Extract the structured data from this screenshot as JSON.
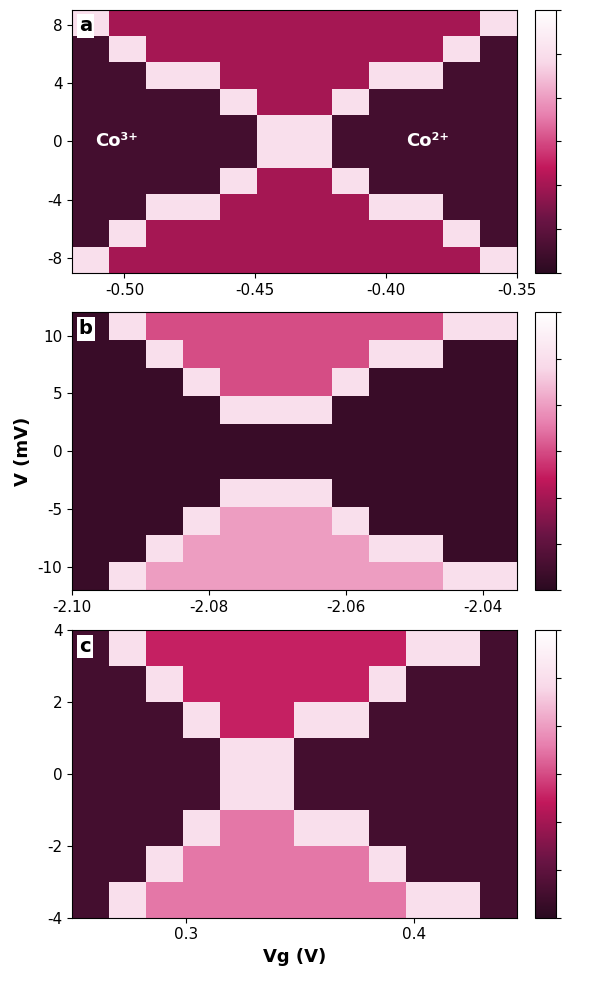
{
  "chart_data": [
    {
      "type": "heatmap",
      "title": "a",
      "xlim": [
        -0.52,
        -0.35
      ],
      "xticks": [
        {
          "value": -0.5,
          "label": "-0.50"
        },
        -0.45,
        {
          "value": -0.4,
          "label": "-0.40"
        },
        -0.35
      ],
      "ylim": [
        -9,
        9
      ],
      "yticks": [
        -8,
        -4,
        0,
        4,
        8
      ],
      "annotations": [
        "Co³⁺",
        "Co²⁺"
      ],
      "cells": [
        [
          5,
          2,
          2,
          2,
          2,
          2,
          2,
          2,
          2,
          2,
          2,
          5
        ],
        [
          0.5,
          5,
          2,
          2,
          2,
          2,
          2,
          2,
          2,
          2,
          5,
          0.5
        ],
        [
          0.5,
          0.5,
          5,
          5,
          2,
          2,
          2,
          2,
          5,
          5,
          0.5,
          0.5
        ],
        [
          0.5,
          0.5,
          0.5,
          0.5,
          5,
          2,
          2,
          5,
          0.5,
          0.5,
          0.5,
          0.5
        ],
        [
          0.5,
          0.5,
          0.5,
          0.5,
          0.5,
          5,
          5,
          0.5,
          0.5,
          0.5,
          0.5,
          0.5
        ],
        [
          0.5,
          0.5,
          0.5,
          0.5,
          0.5,
          5,
          5,
          0.5,
          0.5,
          0.5,
          0.5,
          0.5
        ],
        [
          0.5,
          0.5,
          0.5,
          0.5,
          5,
          2,
          2,
          5,
          0.5,
          0.5,
          0.5,
          0.5
        ],
        [
          0.5,
          0.5,
          5,
          5,
          2,
          2,
          2,
          2,
          5,
          5,
          0.5,
          0.5
        ],
        [
          0.5,
          5,
          2,
          2,
          2,
          2,
          2,
          2,
          2,
          2,
          5,
          0.5
        ],
        [
          5,
          2,
          2,
          2,
          2,
          2,
          2,
          2,
          2,
          2,
          2,
          5
        ]
      ],
      "colorbar": {
        "range": [
          0,
          6
        ],
        "ticks": [
          0,
          1,
          2,
          3,
          4,
          5,
          6
        ],
        "tick_labels": false
      }
    },
    {
      "type": "heatmap",
      "title": "b",
      "ylabel": "V (mV)",
      "xlim": [
        -2.1,
        -2.035
      ],
      "xticks": [
        {
          "value": -2.1,
          "label": "-2.10"
        },
        -2.08,
        -2.06,
        -2.04
      ],
      "ylim": [
        -12,
        12
      ],
      "yticks": [
        -10,
        -5,
        0,
        5,
        10
      ],
      "cells": [
        [
          0.3,
          5,
          4,
          4,
          4,
          4,
          4,
          4,
          4,
          4,
          5,
          5
        ],
        [
          0.3,
          0.3,
          5,
          4,
          4,
          4,
          4,
          4,
          5,
          5,
          0.3,
          0.3
        ],
        [
          0.3,
          0.3,
          0.3,
          5,
          4,
          4,
          4,
          5,
          0.3,
          0.3,
          0.3,
          0.3
        ],
        [
          0.3,
          0.3,
          0.3,
          0.3,
          5,
          5,
          5,
          0.3,
          0.3,
          0.3,
          0.3,
          0.3
        ],
        [
          0.3,
          0.3,
          0.3,
          0.3,
          0.3,
          0.3,
          0.3,
          0.3,
          0.3,
          0.3,
          0.3,
          0.3
        ],
        [
          0.3,
          0.3,
          0.3,
          0.3,
          0.3,
          0.3,
          0.3,
          0.3,
          0.3,
          0.3,
          0.3,
          0.3
        ],
        [
          0.3,
          0.3,
          0.3,
          0.3,
          5,
          5,
          5,
          0.3,
          0.3,
          0.3,
          0.3,
          0.3
        ],
        [
          0.3,
          0.3,
          0.3,
          5,
          3,
          3,
          3,
          5,
          0.3,
          0.3,
          0.3,
          0.3
        ],
        [
          0.3,
          0.3,
          5,
          3,
          3,
          3,
          3,
          3,
          5,
          5,
          0.3,
          0.3
        ],
        [
          0.3,
          5,
          3,
          3,
          3,
          3,
          3,
          3,
          3,
          3,
          5,
          5
        ]
      ],
      "colorbar": {
        "range": [
          0,
          6
        ],
        "ticks": [
          0,
          1,
          2,
          3,
          4,
          5,
          6
        ],
        "tick_labels": false
      }
    },
    {
      "type": "heatmap",
      "title": "c",
      "xlabel": "Vg (V)",
      "xlim": [
        0.25,
        0.445
      ],
      "xticks": [
        0.3,
        0.4
      ],
      "ylim": [
        -4,
        4
      ],
      "yticks": [
        -4,
        -2,
        0,
        2,
        4
      ],
      "cells": [
        [
          0.5,
          5,
          3.5,
          3.5,
          3.5,
          3.5,
          3.5,
          3.5,
          3.5,
          5,
          5,
          0.5
        ],
        [
          0.5,
          0.5,
          5,
          3.5,
          3.5,
          3.5,
          3.5,
          3.5,
          5,
          0.5,
          0.5,
          0.5
        ],
        [
          0.5,
          0.5,
          0.5,
          5,
          3.5,
          3.5,
          5,
          5,
          0.5,
          0.5,
          0.5,
          0.5
        ],
        [
          0.5,
          0.5,
          0.5,
          0.5,
          5,
          5,
          0.5,
          0.5,
          0.5,
          0.5,
          0.5,
          0.5
        ],
        [
          0.5,
          0.5,
          0.5,
          0.5,
          5,
          5,
          0.5,
          0.5,
          0.5,
          0.5,
          0.5,
          0.5
        ],
        [
          0.5,
          0.5,
          0.5,
          5,
          2.5,
          2.5,
          5,
          5,
          0.5,
          0.5,
          0.5,
          0.5
        ],
        [
          0.5,
          0.5,
          5,
          2.5,
          2.5,
          2.5,
          2.5,
          2.5,
          5,
          0.5,
          0.5,
          0.5
        ],
        [
          0.5,
          5,
          2.5,
          2.5,
          2.5,
          2.5,
          2.5,
          2.5,
          2.5,
          5,
          5,
          0.5
        ]
      ],
      "colorbar": {
        "range": [
          0,
          6
        ],
        "ticks": [
          0,
          1,
          2,
          3,
          4,
          5,
          6
        ],
        "tick_labels": false
      }
    }
  ]
}
